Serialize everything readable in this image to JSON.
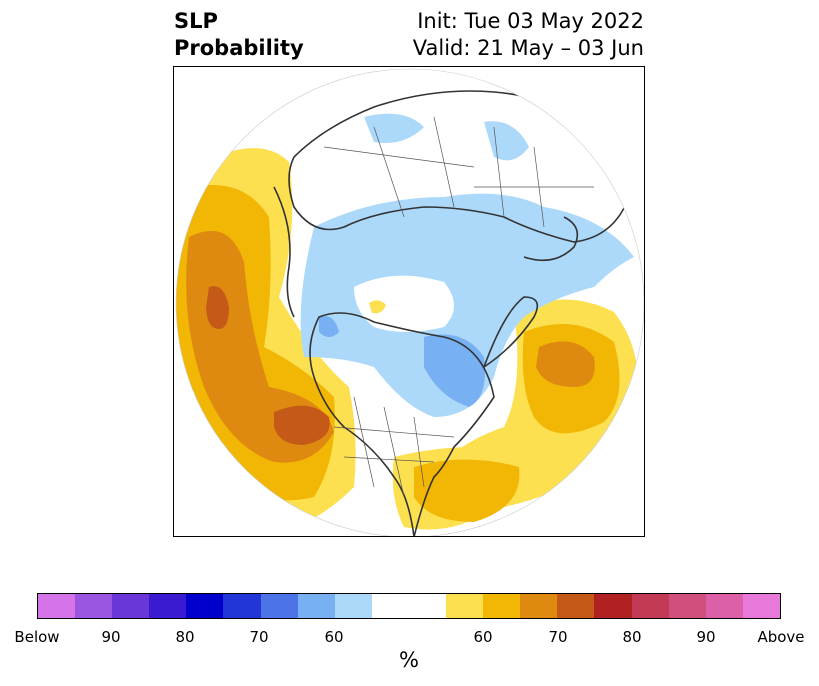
{
  "title": {
    "left_line1": "SLP",
    "left_line2": "Probability",
    "right_line1": "Init: Tue 03 May 2022",
    "right_line2": "Valid: 21 May – 03 Jun"
  },
  "colorbar": {
    "colors": [
      "#d573e8",
      "#9a56e0",
      "#6a36d8",
      "#3a1bd2",
      "#0000cc",
      "#2236d8",
      "#4c74e6",
      "#77b1f4",
      "#acd9fa",
      "#ffffff",
      "#ffffff",
      "#fde04f",
      "#f2b705",
      "#de8a10",
      "#c55a18",
      "#b02222",
      "#c23a55",
      "#cf507f",
      "#dc60a8",
      "#e878da"
    ],
    "labels": [
      "Below",
      "90",
      "80",
      "70",
      "60",
      "60",
      "70",
      "80",
      "90",
      "Above"
    ],
    "unit": "%"
  },
  "map": {
    "projection": "north-polar-stereographic",
    "colors": {
      "yellow": "#fde04f",
      "gold": "#f2b705",
      "orange": "#de8a10",
      "red": "#c55a18",
      "lightblue": "#acd9fa",
      "blue": "#77b1f4",
      "coast": "#333333",
      "border": "#555555"
    }
  }
}
